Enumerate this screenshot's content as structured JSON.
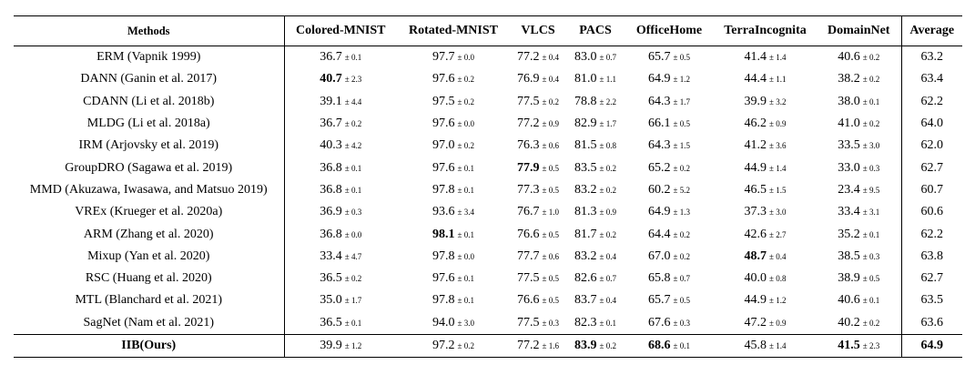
{
  "columns": [
    "Methods",
    "Colored-MNIST",
    "Rotated-MNIST",
    "VLCS",
    "PACS",
    "OfficeHome",
    "TerraIncognita",
    "DomainNet",
    "Average"
  ],
  "rows": [
    {
      "method": "ERM (Vapnik 1999)",
      "cells": [
        [
          "36.7",
          "± 0.1",
          false
        ],
        [
          "97.7",
          "± 0.0",
          false
        ],
        [
          "77.2",
          "± 0.4",
          false
        ],
        [
          "83.0",
          "± 0.7",
          false
        ],
        [
          "65.7",
          "± 0.5",
          false
        ],
        [
          "41.4",
          "± 1.4",
          false
        ],
        [
          "40.6",
          "± 0.2",
          false
        ]
      ],
      "avg": "63.2",
      "avg_bold": false,
      "method_bold": false
    },
    {
      "method": "DANN (Ganin et al. 2017)",
      "cells": [
        [
          "40.7",
          "± 2.3",
          true
        ],
        [
          "97.6",
          "± 0.2",
          false
        ],
        [
          "76.9",
          "± 0.4",
          false
        ],
        [
          "81.0",
          "± 1.1",
          false
        ],
        [
          "64.9",
          "± 1.2",
          false
        ],
        [
          "44.4",
          "± 1.1",
          false
        ],
        [
          "38.2",
          "± 0.2",
          false
        ]
      ],
      "avg": "63.4",
      "avg_bold": false,
      "method_bold": false
    },
    {
      "method": "CDANN (Li et al. 2018b)",
      "cells": [
        [
          "39.1",
          "± 4.4",
          false
        ],
        [
          "97.5",
          "± 0.2",
          false
        ],
        [
          "77.5",
          "± 0.2",
          false
        ],
        [
          "78.8",
          "± 2.2",
          false
        ],
        [
          "64.3",
          "± 1.7",
          false
        ],
        [
          "39.9",
          "± 3.2",
          false
        ],
        [
          "38.0",
          "± 0.1",
          false
        ]
      ],
      "avg": "62.2",
      "avg_bold": false,
      "method_bold": false
    },
    {
      "method": "MLDG (Li et al. 2018a)",
      "cells": [
        [
          "36.7",
          "± 0.2",
          false
        ],
        [
          "97.6",
          "± 0.0",
          false
        ],
        [
          "77.2",
          "± 0.9",
          false
        ],
        [
          "82.9",
          "± 1.7",
          false
        ],
        [
          "66.1",
          "± 0.5",
          false
        ],
        [
          "46.2",
          "± 0.9",
          false
        ],
        [
          "41.0",
          "± 0.2",
          false
        ]
      ],
      "avg": "64.0",
      "avg_bold": false,
      "method_bold": false
    },
    {
      "method": "IRM (Arjovsky et al. 2019)",
      "cells": [
        [
          "40.3",
          "± 4.2",
          false
        ],
        [
          "97.0",
          "± 0.2",
          false
        ],
        [
          "76.3",
          "± 0.6",
          false
        ],
        [
          "81.5",
          "± 0.8",
          false
        ],
        [
          "64.3",
          "± 1.5",
          false
        ],
        [
          "41.2",
          "± 3.6",
          false
        ],
        [
          "33.5",
          "± 3.0",
          false
        ]
      ],
      "avg": "62.0",
      "avg_bold": false,
      "method_bold": false
    },
    {
      "method": "GroupDRO (Sagawa et al. 2019)",
      "cells": [
        [
          "36.8",
          "± 0.1",
          false
        ],
        [
          "97.6",
          "± 0.1",
          false
        ],
        [
          "77.9",
          "± 0.5",
          true
        ],
        [
          "83.5",
          "± 0.2",
          false
        ],
        [
          "65.2",
          "± 0.2",
          false
        ],
        [
          "44.9",
          "± 1.4",
          false
        ],
        [
          "33.0",
          "± 0.3",
          false
        ]
      ],
      "avg": "62.7",
      "avg_bold": false,
      "method_bold": false
    },
    {
      "method": "MMD (Akuzawa, Iwasawa, and Matsuo 2019)",
      "cells": [
        [
          "36.8",
          "± 0.1",
          false
        ],
        [
          "97.8",
          "± 0.1",
          false
        ],
        [
          "77.3",
          "± 0.5",
          false
        ],
        [
          "83.2",
          "± 0.2",
          false
        ],
        [
          "60.2",
          "± 5.2",
          false
        ],
        [
          "46.5",
          "± 1.5",
          false
        ],
        [
          "23.4",
          "± 9.5",
          false
        ]
      ],
      "avg": "60.7",
      "avg_bold": false,
      "method_bold": false
    },
    {
      "method": "VREx (Krueger et al. 2020a)",
      "cells": [
        [
          "36.9",
          "± 0.3",
          false
        ],
        [
          "93.6",
          "± 3.4",
          false
        ],
        [
          "76.7",
          "± 1.0",
          false
        ],
        [
          "81.3",
          "± 0.9",
          false
        ],
        [
          "64.9",
          "± 1.3",
          false
        ],
        [
          "37.3",
          "± 3.0",
          false
        ],
        [
          "33.4",
          "± 3.1",
          false
        ]
      ],
      "avg": "60.6",
      "avg_bold": false,
      "method_bold": false
    },
    {
      "method": "ARM (Zhang et al. 2020)",
      "cells": [
        [
          "36.8",
          "± 0.0",
          false
        ],
        [
          "98.1",
          "± 0.1",
          true
        ],
        [
          "76.6",
          "± 0.5",
          false
        ],
        [
          "81.7",
          "± 0.2",
          false
        ],
        [
          "64.4",
          "± 0.2",
          false
        ],
        [
          "42.6",
          "± 2.7",
          false
        ],
        [
          "35.2",
          "± 0.1",
          false
        ]
      ],
      "avg": "62.2",
      "avg_bold": false,
      "method_bold": false
    },
    {
      "method": "Mixup (Yan et al. 2020)",
      "cells": [
        [
          "33.4",
          "± 4.7",
          false
        ],
        [
          "97.8",
          "± 0.0",
          false
        ],
        [
          "77.7",
          "± 0.6",
          false
        ],
        [
          "83.2",
          "± 0.4",
          false
        ],
        [
          "67.0",
          "± 0.2",
          false
        ],
        [
          "48.7",
          "± 0.4",
          true
        ],
        [
          "38.5",
          "± 0.3",
          false
        ]
      ],
      "avg": "63.8",
      "avg_bold": false,
      "method_bold": false
    },
    {
      "method": "RSC (Huang et al. 2020)",
      "cells": [
        [
          "36.5",
          "± 0.2",
          false
        ],
        [
          "97.6",
          "± 0.1",
          false
        ],
        [
          "77.5",
          "± 0.5",
          false
        ],
        [
          "82.6",
          "± 0.7",
          false
        ],
        [
          "65.8",
          "± 0.7",
          false
        ],
        [
          "40.0",
          "± 0.8",
          false
        ],
        [
          "38.9",
          "± 0.5",
          false
        ]
      ],
      "avg": "62.7",
      "avg_bold": false,
      "method_bold": false
    },
    {
      "method": "MTL (Blanchard et al. 2021)",
      "cells": [
        [
          "35.0",
          "± 1.7",
          false
        ],
        [
          "97.8",
          "± 0.1",
          false
        ],
        [
          "76.6",
          "± 0.5",
          false
        ],
        [
          "83.7",
          "± 0.4",
          false
        ],
        [
          "65.7",
          "± 0.5",
          false
        ],
        [
          "44.9",
          "± 1.2",
          false
        ],
        [
          "40.6",
          "± 0.1",
          false
        ]
      ],
      "avg": "63.5",
      "avg_bold": false,
      "method_bold": false
    },
    {
      "method": "SagNet (Nam et al. 2021)",
      "cells": [
        [
          "36.5",
          "± 0.1",
          false
        ],
        [
          "94.0",
          "± 3.0",
          false
        ],
        [
          "77.5",
          "± 0.3",
          false
        ],
        [
          "82.3",
          "± 0.1",
          false
        ],
        [
          "67.6",
          "± 0.3",
          false
        ],
        [
          "47.2",
          "± 0.9",
          false
        ],
        [
          "40.2",
          "± 0.2",
          false
        ]
      ],
      "avg": "63.6",
      "avg_bold": false,
      "method_bold": false
    },
    {
      "method": "IIB(Ours)",
      "cells": [
        [
          "39.9",
          "± 1.2",
          false
        ],
        [
          "97.2",
          "± 0.2",
          false
        ],
        [
          "77.2",
          "± 1.6",
          false
        ],
        [
          "83.9",
          "± 0.2",
          true
        ],
        [
          "68.6",
          "± 0.1",
          true
        ],
        [
          "45.8",
          "± 1.4",
          false
        ],
        [
          "41.5",
          "± 2.3",
          true
        ]
      ],
      "avg": "64.9",
      "avg_bold": true,
      "method_bold": true
    }
  ]
}
